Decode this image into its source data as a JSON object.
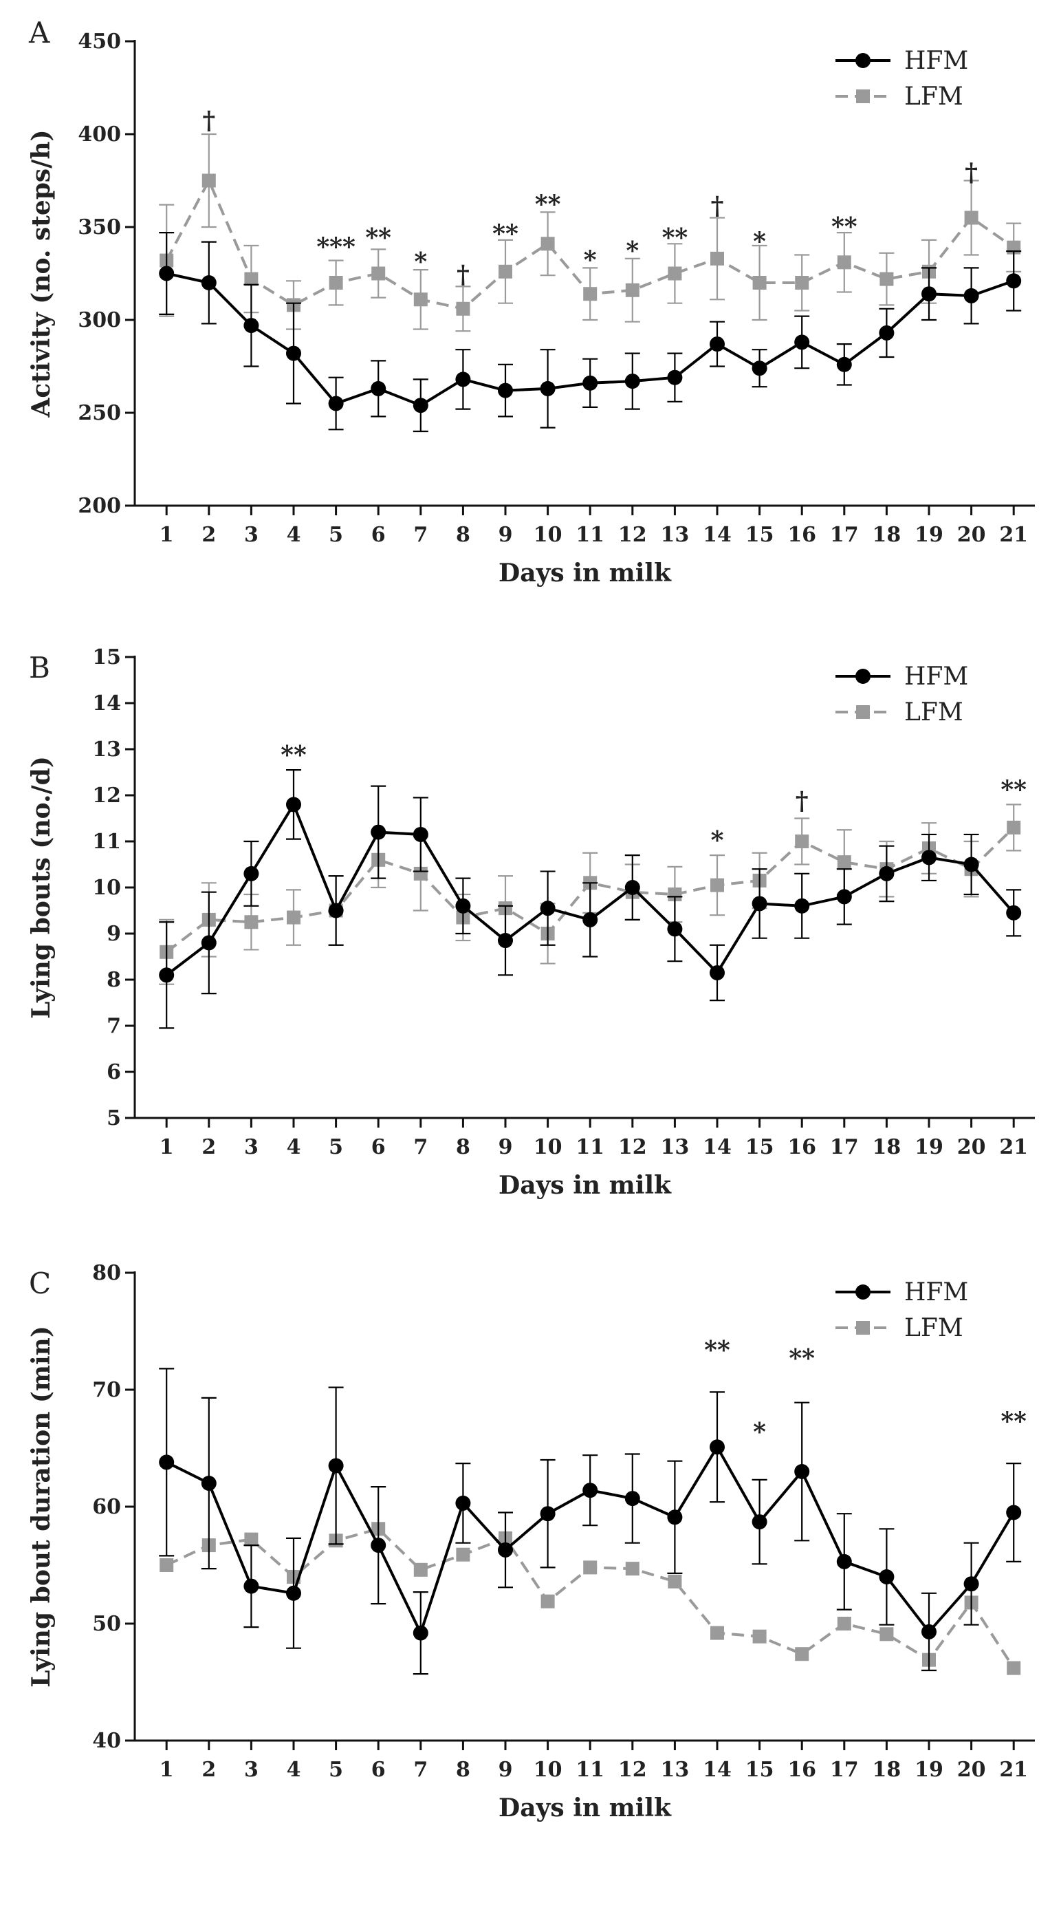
{
  "chart_data": [
    {
      "type": "line",
      "panel_label": "A",
      "xlabel": "Days in milk",
      "ylabel": "Activity (no. steps/h)",
      "ylim": [
        200,
        450
      ],
      "yticks": [
        200,
        250,
        300,
        350,
        400,
        450
      ],
      "categories": [
        "1",
        "2",
        "3",
        "4",
        "5",
        "6",
        "7",
        "8",
        "9",
        "10",
        "11",
        "12",
        "13",
        "14",
        "15",
        "16",
        "17",
        "18",
        "19",
        "20",
        "21"
      ],
      "series": [
        {
          "name": "HFM",
          "color": "#000000",
          "style": "solid",
          "values": [
            325,
            320,
            297,
            282,
            255,
            263,
            254,
            268,
            262,
            263,
            266,
            267,
            269,
            287,
            274,
            288,
            276,
            293,
            314,
            313,
            321
          ],
          "errors": [
            22,
            22,
            22,
            27,
            14,
            15,
            14,
            16,
            14,
            21,
            13,
            15,
            13,
            12,
            10,
            14,
            11,
            13,
            14,
            15,
            16
          ]
        },
        {
          "name": "LFM",
          "color": "#9a9a9a",
          "style": "dashed",
          "values": [
            332,
            375,
            322,
            308,
            320,
            325,
            311,
            306,
            326,
            341,
            314,
            316,
            325,
            333,
            320,
            320,
            331,
            322,
            326,
            355,
            339
          ],
          "errors": [
            30,
            25,
            18,
            13,
            12,
            13,
            16,
            12,
            17,
            17,
            14,
            17,
            16,
            22,
            20,
            15,
            16,
            14,
            17,
            20,
            13
          ]
        }
      ],
      "annotations": [
        {
          "day": 2,
          "text": "†",
          "value": 408
        },
        {
          "day": 5,
          "text": "***",
          "value": 340
        },
        {
          "day": 6,
          "text": "**",
          "value": 345
        },
        {
          "day": 7,
          "text": "*",
          "value": 332
        },
        {
          "day": 8,
          "text": "†",
          "value": 325
        },
        {
          "day": 9,
          "text": "**",
          "value": 347
        },
        {
          "day": 10,
          "text": "**",
          "value": 363
        },
        {
          "day": 11,
          "text": "*",
          "value": 333
        },
        {
          "day": 12,
          "text": "*",
          "value": 338
        },
        {
          "day": 13,
          "text": "**",
          "value": 345
        },
        {
          "day": 14,
          "text": "†",
          "value": 362
        },
        {
          "day": 15,
          "text": "*",
          "value": 343
        },
        {
          "day": 17,
          "text": "**",
          "value": 351
        },
        {
          "day": 20,
          "text": "†",
          "value": 380
        }
      ],
      "legend_position": "top-right"
    },
    {
      "type": "line",
      "panel_label": "B",
      "xlabel": "Days in milk",
      "ylabel": "Lying bouts (no./d)",
      "ylim": [
        5,
        15
      ],
      "yticks": [
        5,
        6,
        7,
        8,
        9,
        10,
        11,
        12,
        13,
        14,
        15
      ],
      "categories": [
        "1",
        "2",
        "3",
        "4",
        "5",
        "6",
        "7",
        "8",
        "9",
        "10",
        "11",
        "12",
        "13",
        "14",
        "15",
        "16",
        "17",
        "18",
        "19",
        "20",
        "21"
      ],
      "series": [
        {
          "name": "HFM",
          "color": "#000000",
          "style": "solid",
          "values": [
            8.1,
            8.8,
            10.3,
            11.8,
            9.5,
            11.2,
            11.15,
            9.6,
            8.85,
            9.55,
            9.3,
            10.0,
            9.1,
            8.15,
            9.65,
            9.6,
            9.8,
            10.3,
            10.65,
            10.5,
            9.45
          ],
          "errors": [
            1.15,
            1.1,
            0.7,
            0.75,
            0.75,
            1.0,
            0.8,
            0.6,
            0.75,
            0.8,
            0.8,
            0.7,
            0.7,
            0.6,
            0.75,
            0.7,
            0.6,
            0.6,
            0.5,
            0.65,
            0.5
          ]
        },
        {
          "name": "LFM",
          "color": "#9a9a9a",
          "style": "dashed",
          "values": [
            8.6,
            9.3,
            9.25,
            9.35,
            9.5,
            10.6,
            10.3,
            9.35,
            9.55,
            9.0,
            10.1,
            9.9,
            9.85,
            10.05,
            10.15,
            11.0,
            10.55,
            10.4,
            10.85,
            10.4,
            11.3
          ],
          "errors": [
            0.7,
            0.8,
            0.6,
            0.6,
            0.75,
            0.6,
            0.8,
            0.5,
            0.7,
            0.65,
            0.65,
            0.6,
            0.6,
            0.65,
            0.6,
            0.5,
            0.7,
            0.6,
            0.55,
            0.6,
            0.5
          ]
        }
      ],
      "annotations": [
        {
          "day": 4,
          "text": "**",
          "value": 12.9
        },
        {
          "day": 14,
          "text": "*",
          "value": 11.05
        },
        {
          "day": 16,
          "text": "†",
          "value": 11.9
        },
        {
          "day": 21,
          "text": "**",
          "value": 12.15
        }
      ],
      "legend_position": "top-right"
    },
    {
      "type": "line",
      "panel_label": "C",
      "xlabel": "Days in milk",
      "ylabel": "Lying bout duration (min)",
      "ylim": [
        40,
        80
      ],
      "yticks": [
        40,
        50,
        60,
        70,
        80
      ],
      "categories": [
        "1",
        "2",
        "3",
        "4",
        "5",
        "6",
        "7",
        "8",
        "9",
        "10",
        "11",
        "12",
        "13",
        "14",
        "15",
        "16",
        "17",
        "18",
        "19",
        "20",
        "21"
      ],
      "series": [
        {
          "name": "HFM",
          "color": "#000000",
          "style": "solid",
          "values": [
            63.8,
            62.0,
            53.2,
            52.6,
            63.5,
            56.7,
            49.2,
            60.3,
            56.3,
            59.4,
            61.4,
            60.7,
            59.1,
            65.1,
            58.7,
            63.0,
            55.3,
            54.0,
            49.3,
            53.4,
            59.5
          ],
          "errors": [
            8.0,
            7.3,
            3.5,
            4.7,
            6.7,
            5.0,
            3.5,
            3.4,
            3.2,
            4.6,
            3.0,
            3.8,
            4.8,
            4.7,
            3.6,
            5.9,
            4.1,
            4.1,
            3.3,
            3.5,
            4.2
          ]
        },
        {
          "name": "LFM",
          "color": "#9a9a9a",
          "style": "dashed",
          "values": [
            55.0,
            56.7,
            57.2,
            54.0,
            57.1,
            58.1,
            54.6,
            55.9,
            57.3,
            51.9,
            54.8,
            54.7,
            53.6,
            49.2,
            48.9,
            47.4,
            50.0,
            49.1,
            46.9,
            51.8,
            46.2
          ]
        }
      ],
      "annotations": [
        {
          "day": 14,
          "text": "**",
          "value": 73.5
        },
        {
          "day": 15,
          "text": "*",
          "value": 66.5
        },
        {
          "day": 16,
          "text": "**",
          "value": 72.8
        },
        {
          "day": 21,
          "text": "**",
          "value": 67.4
        }
      ],
      "legend_position": "top-right"
    }
  ]
}
